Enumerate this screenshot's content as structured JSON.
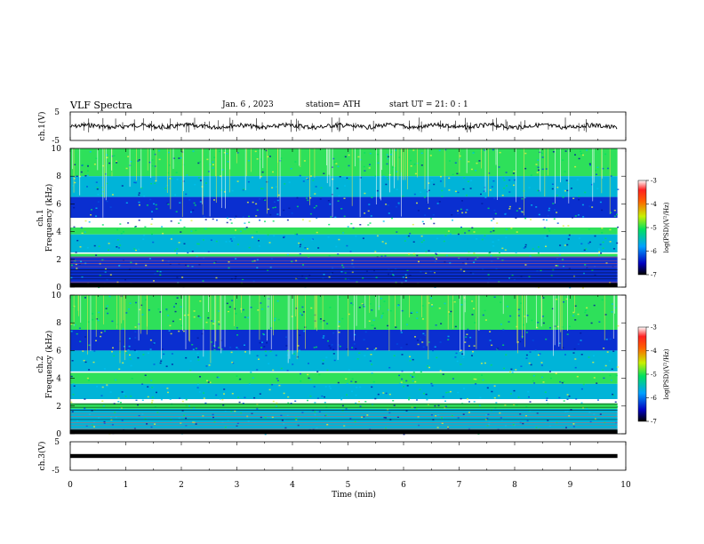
{
  "header": {
    "title": "VLF  Spectra",
    "date": "Jan. 6  , 2023",
    "station": "station= ATH",
    "start": "start  UT  =   21: 0  : 1"
  },
  "chart_data": [
    {
      "type": "line",
      "panel": "ch1-waveform",
      "ylabel": "ch.1(V)",
      "ylim": [
        -5,
        5
      ],
      "yticks": [
        "5",
        "-5"
      ],
      "series": [
        {
          "approx_level": 0
        }
      ]
    },
    {
      "type": "heatmap",
      "panel": "ch1-spectrogram",
      "ylabel_line1": "ch.1",
      "ylabel_line2": "Frequency  (kHz)",
      "ylim": [
        0,
        10
      ],
      "yticks": [
        "0",
        "2",
        "4",
        "6",
        "8",
        "10"
      ],
      "colorbar": {
        "label": "log(PSD)(V²/Hz)",
        "range": [
          -7,
          -3
        ],
        "ticks": [
          "-3",
          "-4",
          "-5",
          "-6",
          "-7"
        ]
      },
      "bands_khz": [
        {
          "from": 8.0,
          "to": 10.0,
          "level": "high"
        },
        {
          "from": 6.5,
          "to": 8.0,
          "level": "mid"
        },
        {
          "from": 5.0,
          "to": 6.5,
          "level": "low"
        },
        {
          "from": 3.8,
          "to": 4.3,
          "level": "high"
        },
        {
          "from": 2.5,
          "to": 3.8,
          "level": "mid"
        },
        {
          "from": 2.2,
          "to": 2.4,
          "level": "high"
        },
        {
          "from": 0.0,
          "to": 2.2,
          "level": "low"
        }
      ]
    },
    {
      "type": "heatmap",
      "panel": "ch2-spectrogram",
      "ylabel_line1": "ch.2",
      "ylabel_line2": "Frequency  (kHz)",
      "ylim": [
        0,
        10
      ],
      "yticks": [
        "0",
        "2",
        "4",
        "6",
        "8",
        "10"
      ],
      "colorbar": {
        "label": "log(PSD)(V²/Hz)",
        "range": [
          -7,
          -3
        ],
        "ticks": [
          "-3",
          "-4",
          "-5",
          "-6",
          "-7"
        ]
      },
      "bands_khz": [
        {
          "from": 7.5,
          "to": 10.0,
          "level": "high"
        },
        {
          "from": 6.0,
          "to": 7.5,
          "level": "low"
        },
        {
          "from": 4.5,
          "to": 6.0,
          "level": "mid"
        },
        {
          "from": 3.6,
          "to": 4.4,
          "level": "high"
        },
        {
          "from": 2.5,
          "to": 3.6,
          "level": "mid"
        },
        {
          "from": 1.8,
          "to": 2.2,
          "level": "high"
        },
        {
          "from": 0.0,
          "to": 1.8,
          "level": "mid"
        }
      ]
    },
    {
      "type": "line",
      "panel": "ch3-waveform",
      "ylabel": "ch.3(V)",
      "ylim": [
        -5,
        5
      ],
      "yticks": [
        "5",
        "-5"
      ],
      "series": [
        {
          "approx_level": 0
        }
      ]
    }
  ],
  "x_axis": {
    "label": "Time  (min)",
    "range": [
      0,
      10
    ],
    "ticks": [
      "0",
      "1",
      "2",
      "3",
      "4",
      "5",
      "6",
      "7",
      "8",
      "9",
      "10"
    ],
    "data_end_min": 9.85
  },
  "colors": {
    "high": "#2ee05a",
    "mid": "#00b4d8",
    "low": "#0a2fd0",
    "spark": "#e6e650",
    "trace": "#000000"
  }
}
